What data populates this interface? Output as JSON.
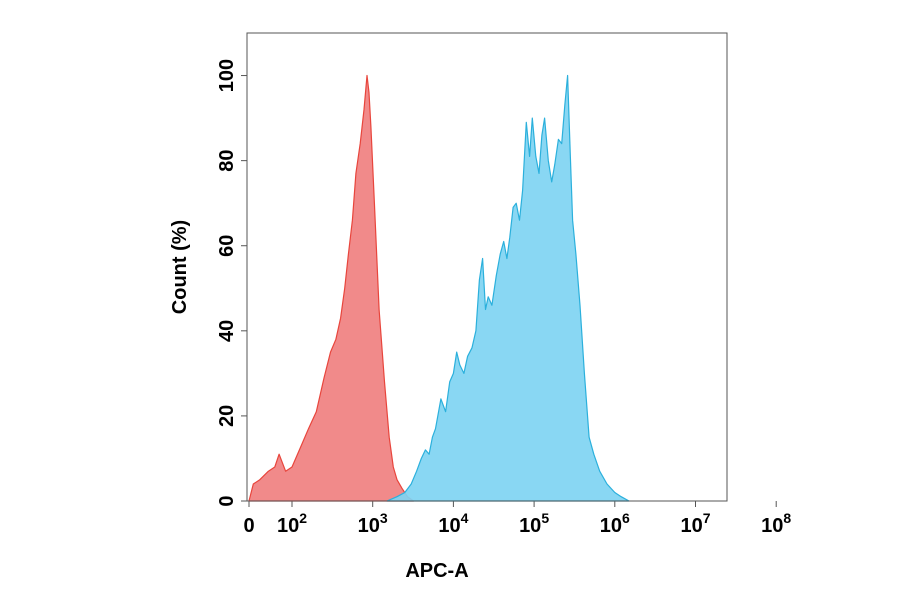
{
  "chart_data": {
    "type": "area",
    "xlabel": "APC-A",
    "ylabel": "Count  (%)",
    "x_scale": "biexponential",
    "xlim": [
      0,
      100000000
    ],
    "ylim": [
      0,
      110
    ],
    "grid": false,
    "legend": "none",
    "x_ticks": [
      {
        "value": 0,
        "base": "0",
        "exp": ""
      },
      {
        "value": 100,
        "base": "10",
        "exp": "2"
      },
      {
        "value": 1000,
        "base": "10",
        "exp": "3"
      },
      {
        "value": 10000,
        "base": "10",
        "exp": "4"
      },
      {
        "value": 100000,
        "base": "10",
        "exp": "5"
      },
      {
        "value": 1000000,
        "base": "10",
        "exp": "6"
      },
      {
        "value": 10000000,
        "base": "10",
        "exp": "7"
      },
      {
        "value": 100000000,
        "base": "10",
        "exp": "8"
      }
    ],
    "y_ticks": [
      0,
      20,
      40,
      60,
      80,
      100
    ],
    "series": [
      {
        "color": "#e8453c",
        "fill": "#f08080",
        "x": [
          0,
          10,
          25,
          45,
          60,
          70,
          85,
          100,
          130,
          160,
          200,
          250,
          300,
          350,
          400,
          450,
          500,
          560,
          620,
          700,
          780,
          850,
          900,
          950,
          1050,
          1200,
          1400,
          1600,
          1800,
          2000,
          2300,
          2700,
          3200
        ],
        "y": [
          0,
          4,
          5,
          7,
          8,
          11,
          7,
          8,
          13,
          17,
          21,
          29,
          35,
          38,
          43,
          50,
          58,
          66,
          77,
          84,
          92,
          100,
          96,
          88,
          70,
          45,
          28,
          15,
          8,
          5,
          3,
          1,
          0
        ]
      },
      {
        "color": "#2bb0dc",
        "fill": "#7fd4f2",
        "x": [
          1500,
          2000,
          2500,
          3000,
          3500,
          4000,
          4500,
          5000,
          5500,
          6000,
          7000,
          8000,
          9000,
          10000,
          11000,
          12000,
          13500,
          15000,
          17000,
          19000,
          21000,
          23000,
          25000,
          27000,
          30000,
          34000,
          38000,
          42000,
          46000,
          50000,
          55000,
          60000,
          66000,
          72000,
          80000,
          88000,
          95000,
          105000,
          115000,
          125000,
          135000,
          150000,
          165000,
          180000,
          200000,
          220000,
          240000,
          260000,
          280000,
          300000,
          330000,
          370000,
          420000,
          480000,
          550000,
          650000,
          800000,
          1000000,
          1200000,
          1500000
        ],
        "y": [
          0,
          1,
          2,
          4,
          7,
          10,
          12,
          11,
          15,
          17,
          24,
          21,
          28,
          30,
          35,
          32,
          30,
          34,
          36,
          40,
          52,
          57,
          45,
          48,
          46,
          53,
          58,
          61,
          57,
          62,
          69,
          70,
          66,
          73,
          89,
          81,
          90,
          81,
          77,
          86,
          90,
          80,
          75,
          79,
          85,
          84,
          93,
          100,
          82,
          66,
          58,
          46,
          30,
          15,
          11,
          7,
          4,
          2,
          1,
          0
        ]
      }
    ]
  }
}
